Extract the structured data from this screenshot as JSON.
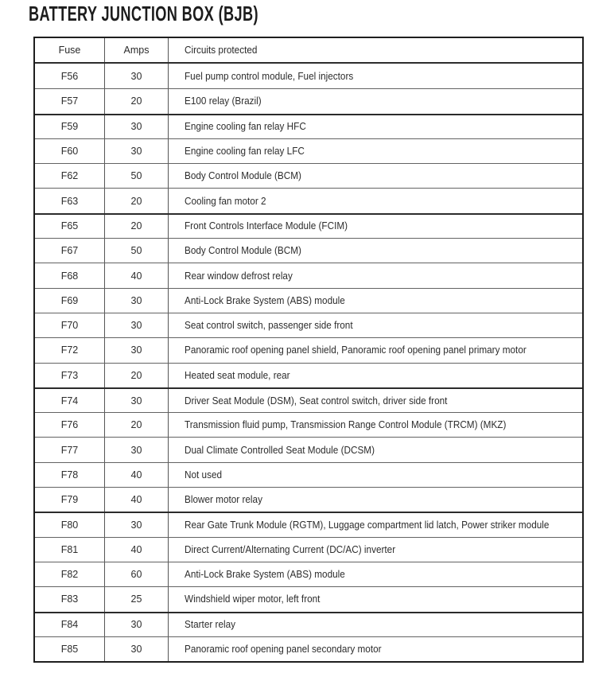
{
  "page_title": "BATTERY JUNCTION BOX (BJB)",
  "table": {
    "columns": [
      "Fuse",
      "Amps",
      "Circuits protected"
    ],
    "rows": [
      {
        "fuse": "F56",
        "amps": "30",
        "circuits": "Fuel pump control module, Fuel injectors"
      },
      {
        "fuse": "F57",
        "amps": "20",
        "circuits": "E100 relay (Brazil)"
      },
      {
        "fuse": "F59",
        "amps": "30",
        "circuits": "Engine cooling fan relay HFC"
      },
      {
        "fuse": "F60",
        "amps": "30",
        "circuits": "Engine cooling fan relay LFC"
      },
      {
        "fuse": "F62",
        "amps": "50",
        "circuits": "Body Control Module (BCM)"
      },
      {
        "fuse": "F63",
        "amps": "20",
        "circuits": "Cooling fan motor 2"
      },
      {
        "fuse": "F65",
        "amps": "20",
        "circuits": "Front Controls Interface Module (FCIM)"
      },
      {
        "fuse": "F67",
        "amps": "50",
        "circuits": "Body Control Module (BCM)"
      },
      {
        "fuse": "F68",
        "amps": "40",
        "circuits": "Rear window defrost relay"
      },
      {
        "fuse": "F69",
        "amps": "30",
        "circuits": "Anti-Lock Brake System (ABS) module"
      },
      {
        "fuse": "F70",
        "amps": "30",
        "circuits": "Seat control switch, passenger side front"
      },
      {
        "fuse": "F72",
        "amps": "30",
        "circuits": "Panoramic roof opening panel shield, Panoramic roof opening panel primary motor"
      },
      {
        "fuse": "F73",
        "amps": "20",
        "circuits": "Heated seat module, rear"
      },
      {
        "fuse": "F74",
        "amps": "30",
        "circuits": "Driver Seat Module (DSM), Seat control switch, driver side front"
      },
      {
        "fuse": "F76",
        "amps": "20",
        "circuits": "Transmission fluid pump, Transmission Range Control Module (TRCM) (MKZ)"
      },
      {
        "fuse": "F77",
        "amps": "30",
        "circuits": "Dual Climate Controlled Seat Module (DCSM)"
      },
      {
        "fuse": "F78",
        "amps": "40",
        "circuits": "Not used"
      },
      {
        "fuse": "F79",
        "amps": "40",
        "circuits": "Blower motor relay"
      },
      {
        "fuse": "F80",
        "amps": "30",
        "circuits": "Rear Gate Trunk Module (RGTM), Luggage compartment lid latch, Power striker module"
      },
      {
        "fuse": "F81",
        "amps": "40",
        "circuits": "Direct Current/Alternating Current (DC/AC) inverter"
      },
      {
        "fuse": "F82",
        "amps": "60",
        "circuits": "Anti-Lock Brake System (ABS) module"
      },
      {
        "fuse": "F83",
        "amps": "25",
        "circuits": "Windshield wiper motor, left front"
      },
      {
        "fuse": "F84",
        "amps": "30",
        "circuits": "Starter relay"
      },
      {
        "fuse": "F85",
        "amps": "30",
        "circuits": "Panoramic roof opening panel secondary motor"
      }
    ]
  }
}
